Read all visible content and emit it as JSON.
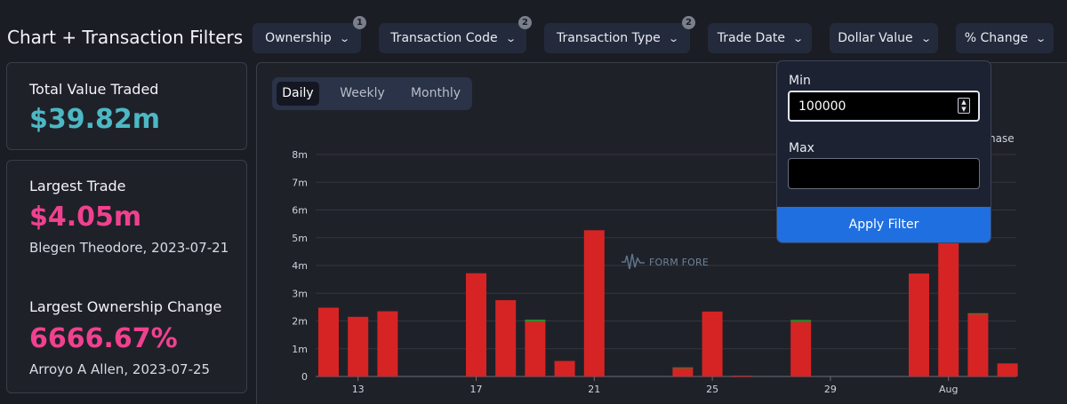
{
  "header": {
    "title": "Chart + Transaction Filters"
  },
  "filters": [
    {
      "label": "Ownership",
      "badge": "1"
    },
    {
      "label": "Transaction Code",
      "badge": "2"
    },
    {
      "label": "Transaction Type",
      "badge": "2"
    },
    {
      "label": "Trade Date",
      "badge": ""
    },
    {
      "label": "Dollar Value",
      "badge": ""
    },
    {
      "label": "% Change",
      "badge": ""
    }
  ],
  "icons": {
    "chevron": "chevron-down-icon",
    "spinner": "spinner-arrows-icon",
    "watermark": "form-fore-logo-icon"
  },
  "stats": {
    "total_label": "Total Value Traded",
    "total_value": "$39.82m",
    "largest_trade_label": "Largest Trade",
    "largest_trade_value": "$4.05m",
    "largest_trade_sub": "Blegen Theodore, 2023-07-21",
    "largest_own_label": "Largest Ownership Change",
    "largest_own_value": "6666.67%",
    "largest_own_sub": "Arroyo A Allen, 2023-07-25"
  },
  "periods": [
    "Daily",
    "Weekly",
    "Monthly"
  ],
  "active_period": "Daily",
  "dropdown": {
    "min_label": "Min",
    "min_value": "100000",
    "max_label": "Max",
    "max_value": "",
    "apply_label": "Apply Filter"
  },
  "legend_fragment": "hase",
  "watermark_text": "FORM FORE",
  "colors": {
    "sale": "#d62424",
    "purchase": "#2e8b2e",
    "teal": "#4cb8c4",
    "pink": "#f0418f",
    "accent": "#1f6fe0"
  },
  "chart_data": {
    "type": "bar",
    "stacked": true,
    "ylim": [
      0,
      8000000
    ],
    "y_ticks": [
      0,
      1000000,
      2000000,
      3000000,
      4000000,
      5000000,
      6000000,
      7000000,
      8000000
    ],
    "y_tick_labels": [
      "0",
      "1m",
      "2m",
      "3m",
      "4m",
      "5m",
      "6m",
      "7m",
      "8m"
    ],
    "x_tick_labels": [
      {
        "day": 13,
        "label": "13"
      },
      {
        "day": 17,
        "label": "17"
      },
      {
        "day": 21,
        "label": "21"
      },
      {
        "day": 25,
        "label": "25"
      },
      {
        "day": 29,
        "label": "29"
      },
      {
        "day": 33,
        "label": "Aug"
      }
    ],
    "grid": true,
    "series": [
      {
        "key": "sale",
        "color": "#d62424"
      },
      {
        "key": "purchase",
        "color": "#2e8b2e"
      }
    ],
    "points": [
      {
        "day": 12,
        "sale": 2480000,
        "purchase": 0
      },
      {
        "day": 13,
        "sale": 2150000,
        "purchase": 0
      },
      {
        "day": 14,
        "sale": 2350000,
        "purchase": 0
      },
      {
        "day": 17,
        "sale": 3720000,
        "purchase": 0
      },
      {
        "day": 18,
        "sale": 2750000,
        "purchase": 0
      },
      {
        "day": 19,
        "sale": 1970000,
        "purchase": 80000
      },
      {
        "day": 20,
        "sale": 560000,
        "purchase": 0
      },
      {
        "day": 21,
        "sale": 5270000,
        "purchase": 0
      },
      {
        "day": 24,
        "sale": 300000,
        "purchase": 30000
      },
      {
        "day": 25,
        "sale": 2340000,
        "purchase": 0
      },
      {
        "day": 26,
        "sale": 30000,
        "purchase": 0
      },
      {
        "day": 28,
        "sale": 1960000,
        "purchase": 80000
      },
      {
        "day": 32,
        "sale": 3710000,
        "purchase": 0
      },
      {
        "day": 33,
        "sale": 4800000,
        "purchase": 0
      },
      {
        "day": 34,
        "sale": 2240000,
        "purchase": 40000
      },
      {
        "day": 35,
        "sale": 470000,
        "purchase": 0
      }
    ]
  }
}
